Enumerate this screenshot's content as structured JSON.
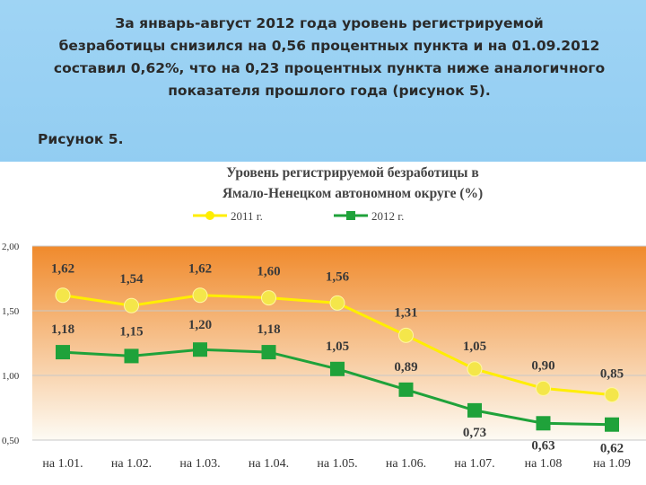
{
  "slide": {
    "paragraph": "За январь-август 2012 года уровень регистрируемой\nбезработицы снизился на 0,56 процентных пункта и на 01.09.2012\nсоставил 0,62%, что на 0,23 процентных пункта ниже аналогичного\nпоказателя прошлого года (рисунок 5).",
    "figure_caption": "Рисунок 5."
  },
  "colors": {
    "series_2011": "#ffee00",
    "series_2011_marker": "#f4e64a",
    "series_2012": "#1fa23a",
    "plot_top": "#f08a2c",
    "plot_bottom": "#fdfbf4"
  },
  "chart_data": {
    "type": "line",
    "title": "Уровень регистрируемой безработицы в Ямало-Ненецком автономном округе (%)",
    "title_lines": [
      "Уровень регистрируемой безработицы в",
      "Ямало-Ненецком автономном округе (%)"
    ],
    "categories": [
      "на 1.01.",
      "на 1.02.",
      "на 1.03.",
      "на 1.04.",
      "на 1.05.",
      "на 1.06.",
      "на 1.07.",
      "на 1.08",
      "на 1.09"
    ],
    "series": [
      {
        "name": "2011 г.",
        "values": [
          1.62,
          1.54,
          1.62,
          1.6,
          1.56,
          1.31,
          1.05,
          0.9,
          0.85
        ],
        "labels": [
          "1,62",
          "1,54",
          "1,62",
          "1,60",
          "1,56",
          "1,31",
          "1,05",
          "0,90",
          "0,85"
        ]
      },
      {
        "name": "2012 г.",
        "values": [
          1.18,
          1.15,
          1.2,
          1.18,
          1.05,
          0.89,
          0.73,
          0.63,
          0.62
        ],
        "labels": [
          "1,18",
          "1,15",
          "1,20",
          "1,18",
          "1,05",
          "0,89",
          "0,73",
          "0,63",
          "0,62"
        ]
      }
    ],
    "y_ticks": [
      2.0,
      1.5,
      1.0,
      0.5
    ],
    "y_tick_labels": [
      "2,00",
      "1,50",
      "1,00",
      "0,50"
    ],
    "ylim": [
      0.5,
      2.0
    ],
    "grid": true,
    "legend_position": "top"
  }
}
